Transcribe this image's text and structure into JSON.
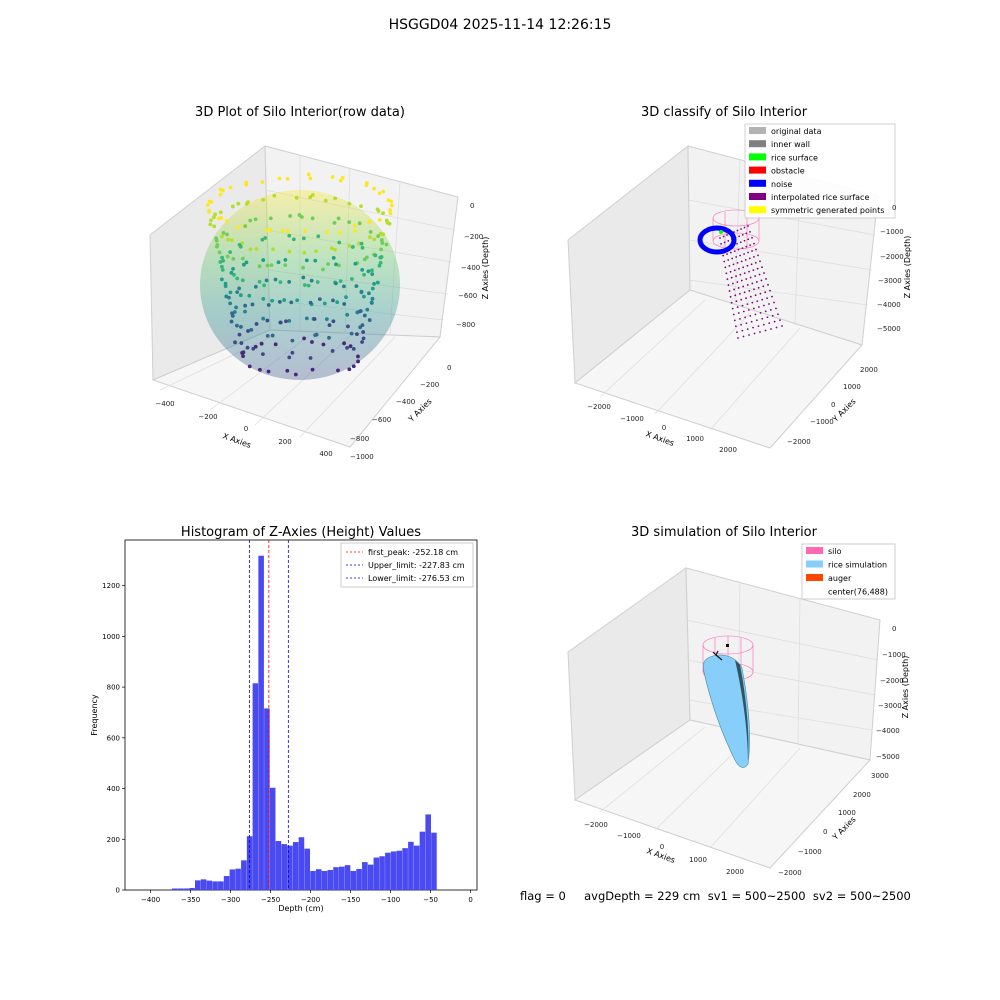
{
  "suptitle": "HSGGD04 2025-11-14 12:26:15",
  "footer": "flag = 0     avgDepth = 229 cm  sv1 = 500~2500  sv2 = 500~2500",
  "colors": {
    "histogram_bar": "#4a4af2",
    "first_peak_line": "#ff0000",
    "limit_line": "#0000cd",
    "pane": "#f2f2f2",
    "grid": "#d0d0d0"
  },
  "chart_data": [
    {
      "type": "scatter",
      "subtype": "3d",
      "title": "3D Plot of Silo Interior(row data)",
      "xlabel": "X Axies",
      "ylabel": "Y Axies",
      "zlabel": "Z Axies (Depth)",
      "x_ticks": [
        "−400",
        "−200",
        "0",
        "200",
        "400"
      ],
      "y_ticks": [
        "0",
        "−200",
        "−400",
        "−600",
        "−800",
        "−1000"
      ],
      "z_ticks": [
        "0",
        "−200",
        "−400",
        "−600",
        "−800"
      ],
      "colormap": "viridis",
      "grid": true
    },
    {
      "type": "scatter",
      "subtype": "3d",
      "title": "3D classify of Silo Interior",
      "xlabel": "X Axies",
      "ylabel": "Y Axies",
      "zlabel": "Z Axies (Depth)",
      "x_ticks": [
        "−2000",
        "−1000",
        "0",
        "1000",
        "2000"
      ],
      "y_ticks": [
        "2000",
        "1000",
        "0",
        "−1000",
        "−2000"
      ],
      "z_ticks": [
        "0",
        "−1000",
        "−2000",
        "−3000",
        "−4000",
        "−5000"
      ],
      "legend": [
        {
          "label": "original data",
          "color": "#b3b3b3"
        },
        {
          "label": "inner wall",
          "color": "#808080"
        },
        {
          "label": "rice surface",
          "color": "#00ff00"
        },
        {
          "label": "obstacle",
          "color": "#ff0000"
        },
        {
          "label": "noise",
          "color": "#0000ff"
        },
        {
          "label": "interpolated rice surface",
          "color": "#800080"
        },
        {
          "label": "symmetric generated points",
          "color": "#ffff00"
        }
      ],
      "legend_placement": "top-right",
      "grid": true
    },
    {
      "type": "bar",
      "subtype": "histogram",
      "title": "Histogram of Z-Axies (Height) Values",
      "xlabel": "Depth (cm)",
      "ylabel": "Frequency",
      "xlim": [
        -432,
        8
      ],
      "ylim": [
        0,
        1380
      ],
      "x_ticks": [
        -400,
        -350,
        -300,
        -250,
        -200,
        -150,
        -100,
        -50,
        0
      ],
      "x_tick_labels": [
        "−400",
        "−350",
        "−300",
        "−250",
        "−200",
        "−150",
        "−100",
        "−50",
        "0"
      ],
      "y_ticks": [
        0,
        200,
        400,
        600,
        800,
        1000,
        1200
      ],
      "bin_width": 7.2,
      "bins": [
        {
          "x": -369.7,
          "y": 6
        },
        {
          "x": -362.5,
          "y": 6
        },
        {
          "x": -355.3,
          "y": 6
        },
        {
          "x": -348.1,
          "y": 8
        },
        {
          "x": -340.9,
          "y": 38
        },
        {
          "x": -333.7,
          "y": 42
        },
        {
          "x": -326.5,
          "y": 37
        },
        {
          "x": -319.3,
          "y": 34
        },
        {
          "x": -312.1,
          "y": 34
        },
        {
          "x": -304.9,
          "y": 55
        },
        {
          "x": -297.7,
          "y": 81
        },
        {
          "x": -290.5,
          "y": 84
        },
        {
          "x": -283.3,
          "y": 117
        },
        {
          "x": -276.1,
          "y": 212
        },
        {
          "x": -268.9,
          "y": 815
        },
        {
          "x": -261.7,
          "y": 1318
        },
        {
          "x": -254.5,
          "y": 716
        },
        {
          "x": -247.3,
          "y": 403
        },
        {
          "x": -240.1,
          "y": 193
        },
        {
          "x": -232.9,
          "y": 181
        },
        {
          "x": -225.7,
          "y": 175
        },
        {
          "x": -218.5,
          "y": 189
        },
        {
          "x": -211.3,
          "y": 208
        },
        {
          "x": -204.1,
          "y": 163
        },
        {
          "x": -196.9,
          "y": 75
        },
        {
          "x": -189.7,
          "y": 82
        },
        {
          "x": -182.5,
          "y": 75
        },
        {
          "x": -175.3,
          "y": 79
        },
        {
          "x": -168.1,
          "y": 90
        },
        {
          "x": -160.9,
          "y": 92
        },
        {
          "x": -153.7,
          "y": 98
        },
        {
          "x": -146.5,
          "y": 75
        },
        {
          "x": -139.3,
          "y": 83
        },
        {
          "x": -132.1,
          "y": 110
        },
        {
          "x": -124.9,
          "y": 100
        },
        {
          "x": -117.7,
          "y": 128
        },
        {
          "x": -110.5,
          "y": 133
        },
        {
          "x": -103.3,
          "y": 147
        },
        {
          "x": -96.1,
          "y": 152
        },
        {
          "x": -88.9,
          "y": 155
        },
        {
          "x": -81.7,
          "y": 165
        },
        {
          "x": -74.5,
          "y": 190
        },
        {
          "x": -67.3,
          "y": 175
        },
        {
          "x": -60.1,
          "y": 230
        },
        {
          "x": -52.9,
          "y": 298
        },
        {
          "x": -45.7,
          "y": 226
        }
      ],
      "vlines": [
        {
          "label": "first_peak: -252.18 cm",
          "x": -252.18,
          "color": "#ff0000"
        },
        {
          "label": "Upper_limit: -227.83 cm",
          "x": -227.83,
          "color": "#0000cd"
        },
        {
          "label": "Lower_limit: -276.53 cm",
          "x": -276.53,
          "color": "#0000cd"
        }
      ],
      "legend_placement": "top-right",
      "grid": false
    },
    {
      "type": "scatter",
      "subtype": "3d",
      "title": "3D simulation of Silo Interior",
      "xlabel": "X Axies",
      "ylabel": "Y Axies",
      "zlabel": "Z Axies (Depth)",
      "x_ticks": [
        "−2000",
        "−1000",
        "0",
        "1000",
        "2000"
      ],
      "y_ticks": [
        "3000",
        "2000",
        "1000",
        "0",
        "−1000",
        "−2000"
      ],
      "z_ticks": [
        "0",
        "−1000",
        "−2000",
        "−3000",
        "−4000",
        "−5000"
      ],
      "legend": [
        {
          "label": "silo",
          "color": "#ff69b4"
        },
        {
          "label": "rice simulation",
          "color": "#87cefa"
        },
        {
          "label": "auger",
          "color": "#ff4500"
        },
        {
          "label": "center(76,488)",
          "color": ""
        }
      ],
      "legend_placement": "top-right",
      "grid": true
    }
  ]
}
